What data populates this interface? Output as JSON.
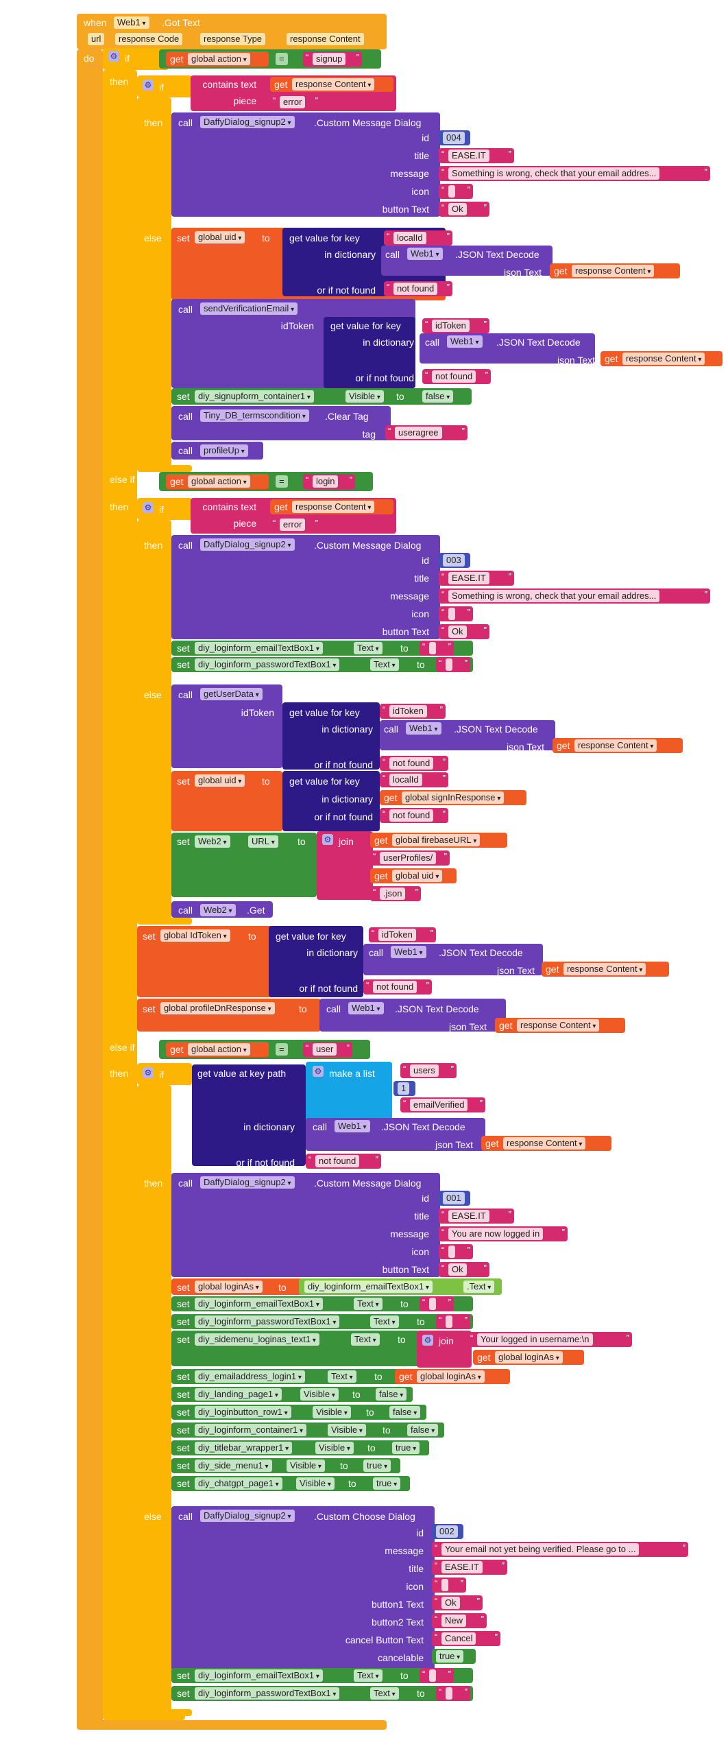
{
  "event": {
    "when": "when",
    "component": "Web1",
    "event_name": ".Got Text",
    "params": [
      "url",
      "response Code",
      "response Type",
      "response Content"
    ],
    "do": "do"
  },
  "kw": {
    "if": "if",
    "then": "then",
    "else": "else",
    "else_if": "else if",
    "call": "call",
    "set": "set",
    "get": "get",
    "to": "to",
    "join": "join",
    "piece": "piece",
    "contains_text": "contains text",
    "id": "id",
    "title": "title",
    "message": "message",
    "icon": "icon",
    "button_text": "button Text",
    "get_value_for_key": "get value for key",
    "in_dictionary": "in dictionary",
    "or_if_not_found": "or if not found",
    "json_text": "json Text",
    "json_decode": ".JSON Text Decode",
    "custom_message_dialog": ".Custom Message Dialog",
    "custom_choose_dialog": ".Custom Choose Dialog",
    "clear_tag": ".Clear Tag",
    "tag": "tag",
    "id_token": "idToken",
    "eq": "=",
    "get_value_at_key_path": "get value at key path",
    "make_a_list": "make a list",
    "dot_get": ".Get",
    "button1_text": "button1 Text",
    "button2_text": "button2 Text",
    "cancel_button_text": "cancel Button Text",
    "cancelable": "cancelable",
    "text_prop": "Text",
    "visible_prop": "Visible",
    "url_prop": "URL",
    "dot_text": ".Text"
  },
  "vars": {
    "global_action": "global action",
    "response_content": "response Content",
    "global_uid": "global uid",
    "global_signin": "global signInResponse",
    "global_firebase": "global firebaseURL",
    "global_idtoken": "global IdToken",
    "global_profiledn": "global profileDnResponse",
    "global_loginas": "global loginAs"
  },
  "strings": {
    "signup": "signup",
    "login": "login",
    "user": "user",
    "error": "error",
    "easeit": "EASE.IT",
    "msg_wrong": "Something is wrong, check that your email addres...",
    "empty": " ",
    "ok": "Ok",
    "localid": "localId",
    "not_found": "not found",
    "idtoken": "idToken",
    "useragree": "useragree",
    "userprofiles": "userProfiles/",
    "json": ".json",
    "users": "users",
    "email_verified": "emailVerified",
    "logged_in": "You are now logged in",
    "logged_user": "Your logged in username:\\n",
    "not_verified": "Your email not yet being verified. Please go to ...",
    "new": "New",
    "cancel": "Cancel"
  },
  "nums": {
    "n004": "004",
    "n003": "003",
    "n001": "001",
    "n002": "002",
    "one": "1"
  },
  "bools": {
    "false": "false",
    "true": "true"
  },
  "components": {
    "dialog": "DaffyDialog_signup2",
    "web1": "Web1",
    "web2": "Web2",
    "send_verification": "sendVerificationEmail",
    "signup_container": "diy_signupform_container1",
    "tinydb": "Tiny_DB_termscondition",
    "profile_up": "profileUp",
    "email_box": "diy_loginform_emailTextBox1",
    "password_box": "diy_loginform_passwordTextBox1",
    "get_user_data": "getUserData",
    "sidemenu_loginas": "diy_sidemenu_loginas_text1",
    "emailaddress": "diy_emailaddress_login1",
    "landing": "diy_landing_page1",
    "loginbutton": "diy_loginbutton_row1",
    "login_container": "diy_loginform_container1",
    "titlebar": "diy_titlebar_wrapper1",
    "side_menu": "diy_side_menu1",
    "chatgpt": "diy_chatgpt_page1"
  },
  "colors": {
    "event": "#f5a623",
    "control": "#fdb503",
    "procedure": "#6a3fb5",
    "dict": "#2e1a87",
    "string": "#d62a6f",
    "variable": "#f05a24",
    "setter": "#3a923a",
    "list": "#15a5e6",
    "number": "#3f51b5"
  }
}
